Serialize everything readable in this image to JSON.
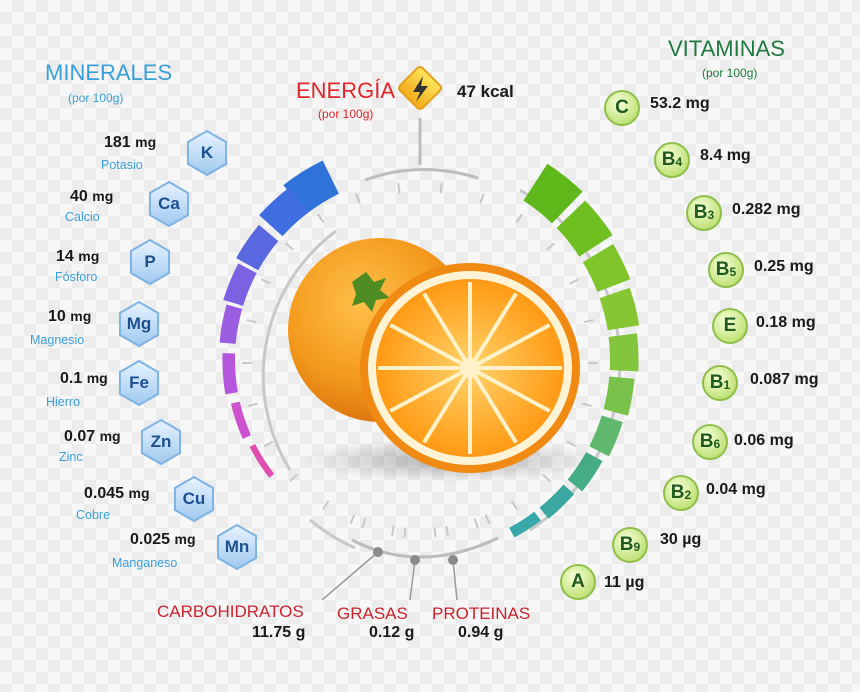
{
  "minerals_header": {
    "title": "MINERALES",
    "subtitle": "(por 100g)"
  },
  "vitamins_header": {
    "title": "VITAMINAS",
    "subtitle": "(por 100g)"
  },
  "energy": {
    "title": "ENERGÍA",
    "subtitle": "(por 100g)",
    "value": "47 kcal",
    "icon": "lightning-icon"
  },
  "minerals": [
    {
      "symbol": "K",
      "amount": "181",
      "unit": "mg",
      "name": "Potasio"
    },
    {
      "symbol": "Ca",
      "amount": "40",
      "unit": "mg",
      "name": "Calcio"
    },
    {
      "symbol": "P",
      "amount": "14",
      "unit": "mg",
      "name": "Fósforo"
    },
    {
      "symbol": "Mg",
      "amount": "10",
      "unit": "mg",
      "name": "Magnesio"
    },
    {
      "symbol": "Fe",
      "amount": "0.1",
      "unit": "mg",
      "name": "Hierro"
    },
    {
      "symbol": "Zn",
      "amount": "0.07",
      "unit": "mg",
      "name": "Zinc"
    },
    {
      "symbol": "Cu",
      "amount": "0.045",
      "unit": "mg",
      "name": "Cobre"
    },
    {
      "symbol": "Mn",
      "amount": "0.025",
      "unit": "mg",
      "name": "Manganeso"
    }
  ],
  "vitamins": [
    {
      "letter": "C",
      "sub": "",
      "amount": "53.2 mg"
    },
    {
      "letter": "B",
      "sub": "4",
      "amount": "8.4 mg"
    },
    {
      "letter": "B",
      "sub": "3",
      "amount": "0.282 mg"
    },
    {
      "letter": "B",
      "sub": "5",
      "amount": "0.25 mg"
    },
    {
      "letter": "E",
      "sub": "",
      "amount": "0.18 mg"
    },
    {
      "letter": "B",
      "sub": "1",
      "amount": "0.087 mg"
    },
    {
      "letter": "B",
      "sub": "6",
      "amount": "0.06 mg"
    },
    {
      "letter": "B",
      "sub": "2",
      "amount": "0.04 mg"
    },
    {
      "letter": "B",
      "sub": "9",
      "amount": "30 µg"
    },
    {
      "letter": "A",
      "sub": "",
      "amount": "11 µg"
    }
  ],
  "macros": [
    {
      "name": "CARBOHIDRATOS",
      "value": "11.75 g"
    },
    {
      "name": "GRASAS",
      "value": "0.12 g"
    },
    {
      "name": "PROTEINAS",
      "value": "0.94 g"
    }
  ],
  "colors": {
    "minerals_title": "#3a9fd8",
    "vitamins_title": "#1f7a3f",
    "energy_title": "#e0262b",
    "macro_title": "#c8242f",
    "orange": "#f39a1c",
    "mineral_gradient": [
      "#2f73d8",
      "#5f5fe0",
      "#9a55e0",
      "#c550d5",
      "#e04fb0"
    ],
    "vitamin_gradient": [
      "#6abf1e",
      "#8ccc28",
      "#7fc640",
      "#3fae8a",
      "#39a8a8"
    ]
  }
}
